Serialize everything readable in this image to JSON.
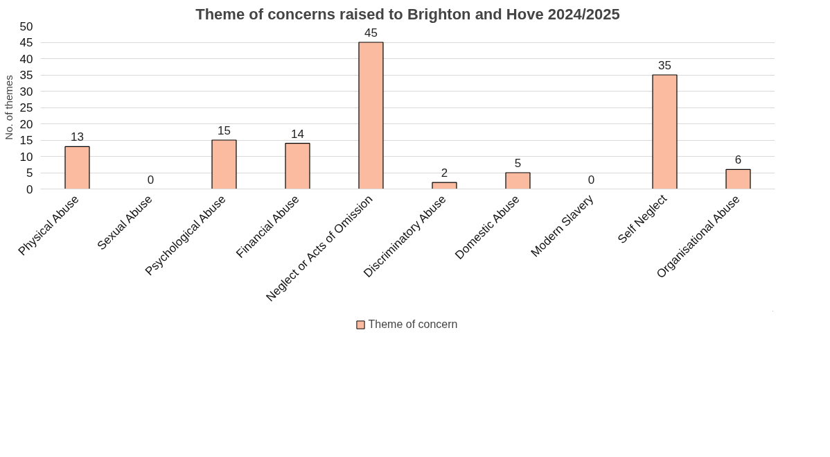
{
  "chart_data": {
    "type": "bar",
    "title": "Theme of concerns raised to Brighton and Hove 2024/2025",
    "ylabel": "No. of themes",
    "categories": [
      "Physical Abuse",
      "Sexual Abuse",
      "Psychological Abuse",
      "Financial Abuse",
      "Neglect or Acts of Omission",
      "Discriminatory Abuse",
      "Domestic Abuse",
      "Modern Slavery",
      "Self Neglect",
      "Organisational Abuse"
    ],
    "series": [
      {
        "name": "Theme of concern",
        "color": "#fbbba0",
        "values": [
          13,
          0,
          15,
          14,
          45,
          2,
          5,
          0,
          35,
          6
        ]
      }
    ],
    "ylim": [
      0,
      50
    ],
    "yticks": [
      0,
      5,
      10,
      15,
      20,
      25,
      30,
      35,
      40,
      45,
      50
    ],
    "grid": "y",
    "legend": "bottom",
    "data_labels": true
  }
}
